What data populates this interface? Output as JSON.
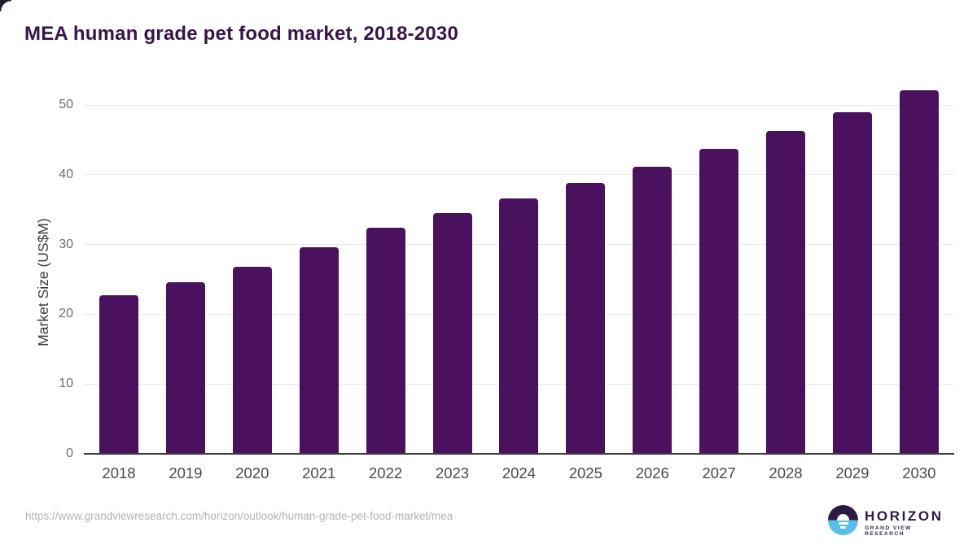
{
  "header": {
    "title": "MEA human grade pet food market, 2018-2030"
  },
  "chart_data": {
    "type": "bar",
    "title": "MEA human grade pet food market, 2018-2030",
    "categories": [
      "2018",
      "2019",
      "2020",
      "2021",
      "2022",
      "2023",
      "2024",
      "2025",
      "2026",
      "2027",
      "2028",
      "2029",
      "2030"
    ],
    "values": [
      22.7,
      24.6,
      26.8,
      29.6,
      32.4,
      34.5,
      36.6,
      38.8,
      41.2,
      43.7,
      46.3,
      49.0,
      52.1
    ],
    "xlabel": "",
    "ylabel": "Market Size (US$M)",
    "yticks": [
      0,
      10,
      20,
      30,
      40,
      50
    ],
    "ylim": [
      0,
      55
    ],
    "grid": "horizontal",
    "legend_position": "none",
    "bar_color": "#4A115F"
  },
  "theme": {
    "background": "#ffffff",
    "title_color": "#371549",
    "grid_color": "#eaeaea",
    "axis_line_color": "#3d3d3d",
    "ytick_color": "#6e6e6e",
    "xtick_color": "#4a4a4a",
    "logo_purple": "#2b1a42",
    "logo_blue": "#57bee8"
  },
  "footer": {
    "source_url": "https://www.grandviewresearch.com/horizon/outlook/human-grade-pet-food-market/mea",
    "logo": {
      "brand": "HORIZON",
      "tagline": "GRAND VIEW RESEARCH"
    }
  }
}
